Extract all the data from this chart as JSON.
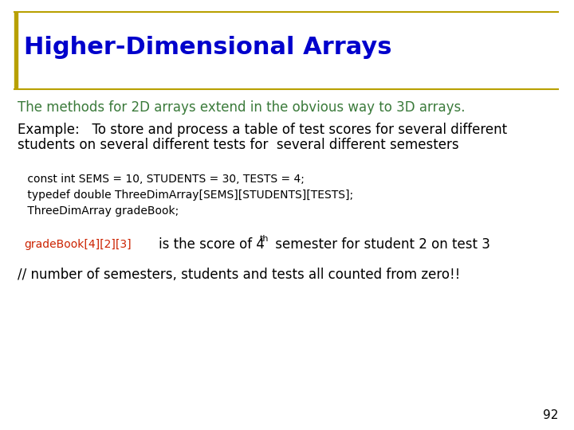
{
  "title": "Higher-Dimensional Arrays",
  "title_color": "#0000CC",
  "title_fontsize": 22,
  "bg_color": "#FFFFFF",
  "left_bar_color": "#B8A000",
  "separator_color": "#B8A000",
  "slide_number": "92",
  "green_text": "The methods for 2D arrays extend in the obvious way to 3D arrays.",
  "green_color": "#3A7A3A",
  "example_text_line1": "Example:   To store and process a table of test scores for several different",
  "example_text_line2": "students on several different tests for  several different semesters",
  "code_line1": " const int SEMS = 10, STUDENTS = 30, TESTS = 4;",
  "code_line2": " typedef double ThreeDimArray[SEMS][STUDENTS][TESTS];",
  "code_line3": " ThreeDimArray gradeBook;",
  "code_color": "#000000",
  "red_code": "gradeBook[4][2][3]",
  "red_color": "#CC2200",
  "score_text_pre": "    is the score of 4",
  "superscript": "th",
  "score_text_post": " semester for student 2 on test 3",
  "comment_text": "// number of semesters, students and tests all counted from zero!!",
  "comment_color": "#000000",
  "code_fontsize": 10,
  "body_fontsize": 12
}
